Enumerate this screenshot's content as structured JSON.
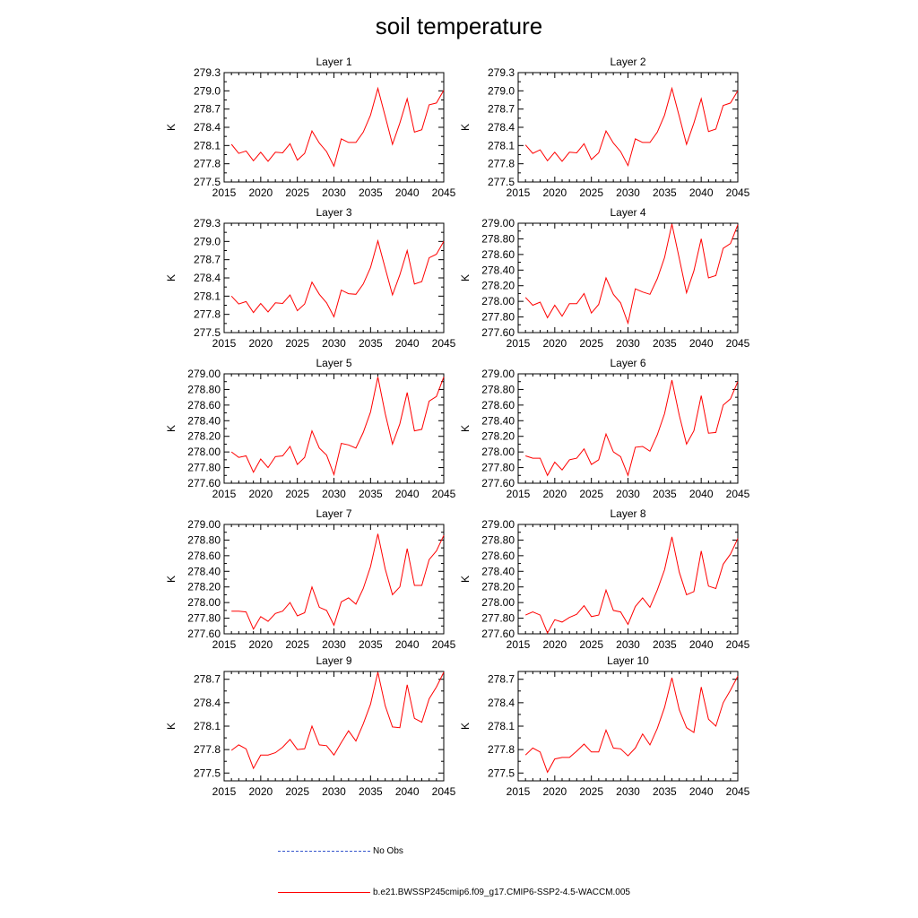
{
  "title": "soil temperature",
  "colors": {
    "model_line": "#ff0000",
    "obs_line": "#3355cc"
  },
  "legend": {
    "obs_label": "No Obs",
    "model_label": "b.e21.BWSSP245cmip6.f09_g17.CMIP6-SSP2-4.5-WACCM.005"
  },
  "chart_data": [
    {
      "type": "line",
      "title": "Layer 1",
      "ylabel": "K",
      "xlim": [
        2015,
        2045
      ],
      "ylim": [
        277.5,
        279.3
      ],
      "xticks": [
        "2015",
        "2020",
        "2025",
        "2030",
        "2035",
        "2040",
        "2045"
      ],
      "yticks": [
        "277.5",
        "277.8",
        "278.1",
        "278.4",
        "278.7",
        "279.0",
        "279.3"
      ],
      "x": [
        2016,
        2017,
        2018,
        2019,
        2020,
        2021,
        2022,
        2023,
        2024,
        2025,
        2026,
        2027,
        2028,
        2029,
        2030,
        2031,
        2032,
        2033,
        2034,
        2035,
        2036,
        2037,
        2038,
        2039,
        2040,
        2041,
        2042,
        2043,
        2044,
        2045
      ],
      "series": [
        {
          "values": [
            278.12,
            277.97,
            278.01,
            277.85,
            277.99,
            277.84,
            277.99,
            277.98,
            278.13,
            277.86,
            277.97,
            278.34,
            278.14,
            278.0,
            277.76,
            278.21,
            278.15,
            278.15,
            278.32,
            278.6,
            279.04,
            278.58,
            278.12,
            278.47,
            278.87,
            278.32,
            278.36,
            278.77,
            278.8,
            279.01
          ]
        }
      ]
    },
    {
      "type": "line",
      "title": "Layer 2",
      "ylabel": "K",
      "xlim": [
        2015,
        2045
      ],
      "ylim": [
        277.5,
        279.3
      ],
      "xticks": [
        "2015",
        "2020",
        "2025",
        "2030",
        "2035",
        "2040",
        "2045"
      ],
      "yticks": [
        "277.5",
        "277.8",
        "278.1",
        "278.4",
        "278.7",
        "279.0",
        "279.3"
      ],
      "x": [
        2016,
        2017,
        2018,
        2019,
        2020,
        2021,
        2022,
        2023,
        2024,
        2025,
        2026,
        2027,
        2028,
        2029,
        2030,
        2031,
        2032,
        2033,
        2034,
        2035,
        2036,
        2037,
        2038,
        2039,
        2040,
        2041,
        2042,
        2043,
        2044,
        2045
      ],
      "series": [
        {
          "values": [
            278.11,
            277.97,
            278.03,
            277.85,
            277.99,
            277.84,
            277.99,
            277.98,
            278.13,
            277.87,
            277.98,
            278.34,
            278.14,
            278.0,
            277.77,
            278.21,
            278.15,
            278.15,
            278.32,
            278.6,
            279.04,
            278.58,
            278.12,
            278.47,
            278.87,
            278.33,
            278.37,
            278.76,
            278.8,
            279.0
          ]
        }
      ]
    },
    {
      "type": "line",
      "title": "Layer 3",
      "ylabel": "K",
      "xlim": [
        2015,
        2045
      ],
      "ylim": [
        277.5,
        279.3
      ],
      "xticks": [
        "2015",
        "2020",
        "2025",
        "2030",
        "2035",
        "2040",
        "2045"
      ],
      "yticks": [
        "277.5",
        "277.8",
        "278.1",
        "278.4",
        "278.7",
        "279.0",
        "279.3"
      ],
      "x": [
        2016,
        2017,
        2018,
        2019,
        2020,
        2021,
        2022,
        2023,
        2024,
        2025,
        2026,
        2027,
        2028,
        2029,
        2030,
        2031,
        2032,
        2033,
        2034,
        2035,
        2036,
        2037,
        2038,
        2039,
        2040,
        2041,
        2042,
        2043,
        2044,
        2045
      ],
      "series": [
        {
          "values": [
            278.1,
            277.97,
            278.01,
            277.83,
            277.98,
            277.84,
            277.99,
            277.98,
            278.12,
            277.86,
            277.97,
            278.33,
            278.13,
            277.99,
            277.76,
            278.2,
            278.14,
            278.13,
            278.3,
            278.57,
            279.01,
            278.56,
            278.12,
            278.45,
            278.85,
            278.3,
            278.34,
            278.73,
            278.79,
            279.0
          ]
        }
      ]
    },
    {
      "type": "line",
      "title": "Layer 4",
      "ylabel": "K",
      "xlim": [
        2015,
        2045
      ],
      "ylim": [
        277.6,
        279.0
      ],
      "xticks": [
        "2015",
        "2020",
        "2025",
        "2030",
        "2035",
        "2040",
        "2045"
      ],
      "yticks": [
        "277.60",
        "277.80",
        "278.00",
        "278.20",
        "278.40",
        "278.60",
        "278.80",
        "279.00"
      ],
      "x": [
        2016,
        2017,
        2018,
        2019,
        2020,
        2021,
        2022,
        2023,
        2024,
        2025,
        2026,
        2027,
        2028,
        2029,
        2030,
        2031,
        2032,
        2033,
        2034,
        2035,
        2036,
        2037,
        2038,
        2039,
        2040,
        2041,
        2042,
        2043,
        2044,
        2045
      ],
      "series": [
        {
          "values": [
            278.05,
            277.95,
            277.99,
            277.79,
            277.95,
            277.81,
            277.97,
            277.97,
            278.1,
            277.85,
            277.96,
            278.3,
            278.09,
            277.98,
            277.72,
            278.16,
            278.12,
            278.09,
            278.29,
            278.56,
            278.99,
            278.55,
            278.11,
            278.39,
            278.8,
            278.3,
            278.33,
            278.68,
            278.74,
            278.98
          ]
        }
      ]
    },
    {
      "type": "line",
      "title": "Layer 5",
      "ylabel": "K",
      "xlim": [
        2015,
        2045
      ],
      "ylim": [
        277.6,
        279.0
      ],
      "xticks": [
        "2015",
        "2020",
        "2025",
        "2030",
        "2035",
        "2040",
        "2045"
      ],
      "yticks": [
        "277.60",
        "277.80",
        "278.00",
        "278.20",
        "278.40",
        "278.60",
        "278.80",
        "279.00"
      ],
      "x": [
        2016,
        2017,
        2018,
        2019,
        2020,
        2021,
        2022,
        2023,
        2024,
        2025,
        2026,
        2027,
        2028,
        2029,
        2030,
        2031,
        2032,
        2033,
        2034,
        2035,
        2036,
        2037,
        2038,
        2039,
        2040,
        2041,
        2042,
        2043,
        2044,
        2045
      ],
      "series": [
        {
          "values": [
            278.0,
            277.93,
            277.95,
            277.74,
            277.91,
            277.8,
            277.94,
            277.95,
            278.07,
            277.84,
            277.93,
            278.27,
            278.05,
            277.96,
            277.71,
            278.11,
            278.09,
            278.05,
            278.25,
            278.51,
            278.96,
            278.49,
            278.1,
            278.36,
            278.76,
            278.27,
            278.29,
            278.65,
            278.71,
            278.96
          ]
        }
      ]
    },
    {
      "type": "line",
      "title": "Layer 6",
      "ylabel": "K",
      "xlim": [
        2015,
        2045
      ],
      "ylim": [
        277.6,
        279.0
      ],
      "xticks": [
        "2015",
        "2020",
        "2025",
        "2030",
        "2035",
        "2040",
        "2045"
      ],
      "yticks": [
        "277.60",
        "277.80",
        "278.00",
        "278.20",
        "278.40",
        "278.60",
        "278.80",
        "279.00"
      ],
      "x": [
        2016,
        2017,
        2018,
        2019,
        2020,
        2021,
        2022,
        2023,
        2024,
        2025,
        2026,
        2027,
        2028,
        2029,
        2030,
        2031,
        2032,
        2033,
        2034,
        2035,
        2036,
        2037,
        2038,
        2039,
        2040,
        2041,
        2042,
        2043,
        2044,
        2045
      ],
      "series": [
        {
          "values": [
            277.95,
            277.92,
            277.92,
            277.7,
            277.87,
            277.77,
            277.9,
            277.92,
            278.04,
            277.84,
            277.9,
            278.23,
            278.0,
            277.94,
            277.7,
            278.06,
            278.07,
            278.01,
            278.22,
            278.49,
            278.92,
            278.47,
            278.1,
            278.27,
            278.72,
            278.24,
            278.25,
            278.6,
            278.68,
            278.9
          ]
        }
      ]
    },
    {
      "type": "line",
      "title": "Layer 7",
      "ylabel": "K",
      "xlim": [
        2015,
        2045
      ],
      "ylim": [
        277.6,
        279.0
      ],
      "xticks": [
        "2015",
        "2020",
        "2025",
        "2030",
        "2035",
        "2040",
        "2045"
      ],
      "yticks": [
        "277.60",
        "277.80",
        "278.00",
        "278.20",
        "278.40",
        "278.60",
        "278.80",
        "279.00"
      ],
      "x": [
        2016,
        2017,
        2018,
        2019,
        2020,
        2021,
        2022,
        2023,
        2024,
        2025,
        2026,
        2027,
        2028,
        2029,
        2030,
        2031,
        2032,
        2033,
        2034,
        2035,
        2036,
        2037,
        2038,
        2039,
        2040,
        2041,
        2042,
        2043,
        2044,
        2045
      ],
      "series": [
        {
          "values": [
            277.89,
            277.89,
            277.88,
            277.66,
            277.82,
            277.76,
            277.86,
            277.89,
            278.0,
            277.83,
            277.87,
            278.2,
            277.94,
            277.9,
            277.71,
            278.01,
            278.06,
            277.98,
            278.18,
            278.46,
            278.88,
            278.43,
            278.1,
            278.2,
            278.69,
            278.22,
            278.22,
            278.55,
            278.66,
            278.86
          ]
        }
      ]
    },
    {
      "type": "line",
      "title": "Layer 8",
      "ylabel": "K",
      "xlim": [
        2015,
        2045
      ],
      "ylim": [
        277.6,
        279.0
      ],
      "xticks": [
        "2015",
        "2020",
        "2025",
        "2030",
        "2035",
        "2040",
        "2045"
      ],
      "yticks": [
        "277.60",
        "277.80",
        "278.00",
        "278.20",
        "278.40",
        "278.60",
        "278.80",
        "279.00"
      ],
      "x": [
        2016,
        2017,
        2018,
        2019,
        2020,
        2021,
        2022,
        2023,
        2024,
        2025,
        2026,
        2027,
        2028,
        2029,
        2030,
        2031,
        2032,
        2033,
        2034,
        2035,
        2036,
        2037,
        2038,
        2039,
        2040,
        2041,
        2042,
        2043,
        2044,
        2045
      ],
      "series": [
        {
          "values": [
            277.84,
            277.88,
            277.84,
            277.61,
            277.78,
            277.75,
            277.81,
            277.85,
            277.96,
            277.82,
            277.84,
            278.16,
            277.9,
            277.88,
            277.72,
            277.95,
            278.06,
            277.94,
            278.16,
            278.42,
            278.84,
            278.39,
            278.1,
            278.14,
            278.66,
            278.21,
            278.18,
            278.49,
            278.62,
            278.82
          ]
        }
      ]
    },
    {
      "type": "line",
      "title": "Layer 9",
      "ylabel": "K",
      "xlim": [
        2015,
        2045
      ],
      "ylim": [
        277.4,
        278.8
      ],
      "xticks": [
        "2015",
        "2020",
        "2025",
        "2030",
        "2035",
        "2040",
        "2045"
      ],
      "yticks": [
        "277.5",
        "277.8",
        "278.1",
        "278.4",
        "278.7"
      ],
      "x": [
        2016,
        2017,
        2018,
        2019,
        2020,
        2021,
        2022,
        2023,
        2024,
        2025,
        2026,
        2027,
        2028,
        2029,
        2030,
        2031,
        2032,
        2033,
        2034,
        2035,
        2036,
        2037,
        2038,
        2039,
        2040,
        2041,
        2042,
        2043,
        2044,
        2045
      ],
      "series": [
        {
          "values": [
            277.79,
            277.86,
            277.81,
            277.56,
            277.73,
            277.73,
            277.76,
            277.83,
            277.93,
            277.8,
            277.81,
            278.1,
            277.86,
            277.85,
            277.73,
            277.89,
            278.04,
            277.91,
            278.13,
            278.38,
            278.79,
            278.36,
            278.09,
            278.08,
            278.63,
            278.2,
            278.15,
            278.45,
            278.6,
            278.79
          ]
        }
      ]
    },
    {
      "type": "line",
      "title": "Layer 10",
      "ylabel": "K",
      "xlim": [
        2015,
        2045
      ],
      "ylim": [
        277.4,
        278.8
      ],
      "xticks": [
        "2015",
        "2020",
        "2025",
        "2030",
        "2035",
        "2040",
        "2045"
      ],
      "yticks": [
        "277.5",
        "277.8",
        "278.1",
        "278.4",
        "278.7"
      ],
      "x": [
        2016,
        2017,
        2018,
        2019,
        2020,
        2021,
        2022,
        2023,
        2024,
        2025,
        2026,
        2027,
        2028,
        2029,
        2030,
        2031,
        2032,
        2033,
        2034,
        2035,
        2036,
        2037,
        2038,
        2039,
        2040,
        2041,
        2042,
        2043,
        2044,
        2045
      ],
      "series": [
        {
          "values": [
            277.73,
            277.82,
            277.77,
            277.51,
            277.68,
            277.7,
            277.7,
            277.78,
            277.87,
            277.77,
            277.77,
            278.05,
            277.82,
            277.81,
            277.72,
            277.82,
            278.0,
            277.86,
            278.07,
            278.34,
            278.72,
            278.31,
            278.08,
            278.02,
            278.6,
            278.19,
            278.1,
            278.4,
            278.56,
            278.74
          ]
        }
      ]
    }
  ]
}
